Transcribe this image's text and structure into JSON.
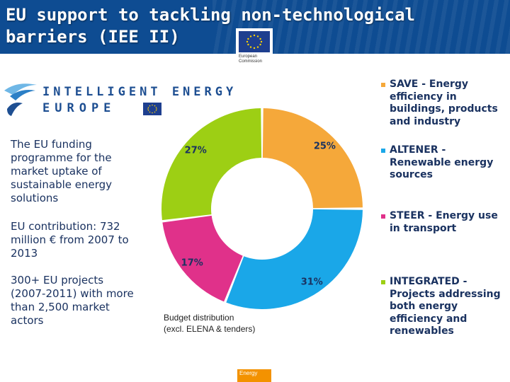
{
  "header": {
    "title": "EU support to tackling non-technological barriers (IEE II)"
  },
  "ec_logo": {
    "line1": "European",
    "line2": "Commission"
  },
  "iee_logo": {
    "line1": "INTELLIGENT ENERGY",
    "line2": "EUROPE"
  },
  "left_panel": {
    "p1": "The EU funding programme for the market uptake of sustainable energy solutions",
    "p2": "EU contribution: 732 million € from 2007 to 2013",
    "p3": "300+ EU projects (2007-2011) with more than 2,500 market actors"
  },
  "chart_data": {
    "type": "pie",
    "variant": "donut",
    "caption_line1": "Budget distribution",
    "caption_line2": "(excl. ELENA & tenders)",
    "slices": [
      {
        "key": "save",
        "value": 25,
        "label": "25%",
        "color": "#f5a83a",
        "legend": "SAVE - Energy efficiency in buildings, products and industry"
      },
      {
        "key": "altener",
        "value": 31,
        "label": "31%",
        "color": "#1aa7e8",
        "legend": "ALTENER - Renewable energy sources"
      },
      {
        "key": "steer",
        "value": 17,
        "label": "17%",
        "color": "#e0318a",
        "legend": "STEER - Energy use in transport"
      },
      {
        "key": "integrated",
        "value": 27,
        "label": "27%",
        "color": "#9dcf14",
        "legend": "INTEGRATED - Projects addressing both energy efficiency and renewables"
      }
    ]
  },
  "footer": {
    "tag": "Energy"
  },
  "colors": {
    "header_bg": "#0e4c92",
    "text_dark": "#1a3260",
    "footer_tag": "#f39200"
  }
}
